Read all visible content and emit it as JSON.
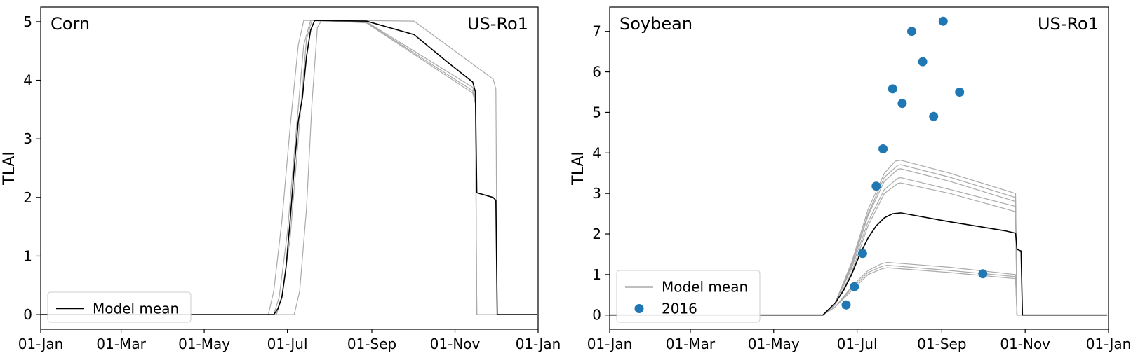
{
  "chart_data": [
    {
      "type": "line",
      "title": "Corn",
      "site": "US-Ro1",
      "ylabel": "TLAI",
      "xlabel": "",
      "xlim": [
        "01-Jan",
        "01-Jan"
      ],
      "ylim": [
        -0.25,
        5.25
      ],
      "xticks": [
        "01-Jan",
        "01-Mar",
        "01-May",
        "01-Jul",
        "01-Sep",
        "01-Nov",
        "01-Jan"
      ],
      "yticks": [
        "0",
        "1",
        "2",
        "3",
        "4",
        "5"
      ],
      "grid": false,
      "legend_position": "lower-left",
      "legend": [
        "Model mean"
      ],
      "mean_color": "#000000",
      "member_color": "#aaaaaa",
      "mean": [
        [
          1,
          0
        ],
        [
          172,
          0
        ],
        [
          175,
          0.1
        ],
        [
          178,
          0.3
        ],
        [
          181,
          0.8
        ],
        [
          184,
          1.6
        ],
        [
          187,
          2.5
        ],
        [
          190,
          3.3
        ],
        [
          193,
          3.7
        ],
        [
          196,
          4.4
        ],
        [
          199,
          4.85
        ],
        [
          202,
          5.02
        ],
        [
          240,
          5.01
        ],
        [
          275,
          4.78
        ],
        [
          300,
          4.3
        ],
        [
          318,
          3.97
        ],
        [
          320,
          3.8
        ],
        [
          321,
          2.08
        ],
        [
          333,
          2.0
        ],
        [
          335,
          1.95
        ],
        [
          336,
          0
        ],
        [
          365,
          0
        ]
      ],
      "members": [
        [
          [
            1,
            0
          ],
          [
            168,
            0
          ],
          [
            172,
            0.4
          ],
          [
            178,
            1.6
          ],
          [
            184,
            3.2
          ],
          [
            190,
            4.6
          ],
          [
            194,
            5.02
          ],
          [
            233,
            5.02
          ],
          [
            275,
            5.01
          ],
          [
            333,
            4.02
          ],
          [
            335,
            3.85
          ],
          [
            336,
            0
          ],
          [
            365,
            0
          ]
        ],
        [
          [
            1,
            0
          ],
          [
            172,
            0
          ],
          [
            176,
            0.3
          ],
          [
            182,
            1.4
          ],
          [
            188,
            3.0
          ],
          [
            194,
            4.6
          ],
          [
            199,
            5.02
          ],
          [
            240,
            5.0
          ],
          [
            318,
            3.88
          ],
          [
            320,
            3.7
          ],
          [
            321,
            0
          ],
          [
            365,
            0
          ]
        ],
        [
          [
            1,
            0
          ],
          [
            174,
            0
          ],
          [
            178,
            0.3
          ],
          [
            184,
            1.3
          ],
          [
            190,
            3.0
          ],
          [
            196,
            4.7
          ],
          [
            200,
            5.02
          ],
          [
            240,
            4.99
          ],
          [
            318,
            3.82
          ],
          [
            320,
            3.65
          ],
          [
            321,
            0
          ],
          [
            365,
            0
          ]
        ],
        [
          [
            1,
            0
          ],
          [
            187,
            0
          ],
          [
            191,
            0.4
          ],
          [
            196,
            1.8
          ],
          [
            200,
            3.6
          ],
          [
            204,
            4.9
          ],
          [
            207,
            5.02
          ],
          [
            240,
            4.98
          ],
          [
            318,
            3.78
          ],
          [
            320,
            3.6
          ],
          [
            321,
            0
          ],
          [
            365,
            0
          ]
        ]
      ]
    },
    {
      "type": "line",
      "title": "Soybean",
      "site": "US-Ro1",
      "ylabel": "TLAI",
      "xlabel": "",
      "xlim": [
        "01-Jan",
        "01-Jan"
      ],
      "ylim": [
        -0.35,
        7.6
      ],
      "xticks": [
        "01-Jan",
        "01-Mar",
        "01-May",
        "01-Jul",
        "01-Sep",
        "01-Nov",
        "01-Jan"
      ],
      "yticks": [
        "0",
        "1",
        "2",
        "3",
        "4",
        "5",
        "6",
        "7"
      ],
      "grid": false,
      "legend_position": "lower-left",
      "legend": [
        "Model mean",
        "2016"
      ],
      "mean_color": "#000000",
      "member_color": "#aaaaaa",
      "obs_color": "#1f77b4",
      "mean": [
        [
          1,
          0
        ],
        [
          157,
          0
        ],
        [
          160,
          0.1
        ],
        [
          166,
          0.3
        ],
        [
          172,
          0.6
        ],
        [
          178,
          1.0
        ],
        [
          184,
          1.5
        ],
        [
          190,
          1.9
        ],
        [
          196,
          2.2
        ],
        [
          202,
          2.4
        ],
        [
          208,
          2.5
        ],
        [
          214,
          2.52
        ],
        [
          250,
          2.3
        ],
        [
          290,
          2.08
        ],
        [
          298,
          2.02
        ],
        [
          299,
          1.62
        ],
        [
          302,
          1.58
        ],
        [
          303,
          0
        ],
        [
          365,
          0
        ]
      ],
      "members": [
        [
          [
            1,
            0
          ],
          [
            157,
            0
          ],
          [
            166,
            0.3
          ],
          [
            178,
            1.3
          ],
          [
            190,
            2.6
          ],
          [
            202,
            3.5
          ],
          [
            210,
            3.8
          ],
          [
            214,
            3.82
          ],
          [
            250,
            3.5
          ],
          [
            298,
            3.0
          ],
          [
            299,
            0
          ],
          [
            365,
            0
          ]
        ],
        [
          [
            1,
            0
          ],
          [
            157,
            0
          ],
          [
            166,
            0.3
          ],
          [
            178,
            1.25
          ],
          [
            190,
            2.5
          ],
          [
            202,
            3.4
          ],
          [
            212,
            3.7
          ],
          [
            214,
            3.71
          ],
          [
            250,
            3.4
          ],
          [
            298,
            2.9
          ],
          [
            299,
            0
          ],
          [
            365,
            0
          ]
        ],
        [
          [
            1,
            0
          ],
          [
            157,
            0
          ],
          [
            166,
            0.3
          ],
          [
            178,
            1.2
          ],
          [
            190,
            2.45
          ],
          [
            202,
            3.3
          ],
          [
            212,
            3.6
          ],
          [
            214,
            3.61
          ],
          [
            250,
            3.3
          ],
          [
            298,
            2.8
          ],
          [
            299,
            0
          ],
          [
            365,
            0
          ]
        ],
        [
          [
            1,
            0
          ],
          [
            157,
            0
          ],
          [
            166,
            0.3
          ],
          [
            178,
            1.15
          ],
          [
            190,
            2.3
          ],
          [
            202,
            3.1
          ],
          [
            212,
            3.38
          ],
          [
            214,
            3.39
          ],
          [
            250,
            3.1
          ],
          [
            298,
            2.68
          ],
          [
            299,
            0
          ],
          [
            365,
            0
          ]
        ],
        [
          [
            1,
            0
          ],
          [
            157,
            0
          ],
          [
            166,
            0.25
          ],
          [
            178,
            1.05
          ],
          [
            190,
            2.2
          ],
          [
            202,
            3.0
          ],
          [
            212,
            3.25
          ],
          [
            214,
            3.26
          ],
          [
            250,
            3.0
          ],
          [
            298,
            2.55
          ],
          [
            299,
            0
          ],
          [
            365,
            0
          ]
        ],
        [
          [
            1,
            0
          ],
          [
            157,
            0
          ],
          [
            166,
            0.2
          ],
          [
            178,
            0.7
          ],
          [
            190,
            1.1
          ],
          [
            200,
            1.27
          ],
          [
            204,
            1.3
          ],
          [
            250,
            1.18
          ],
          [
            298,
            1.0
          ],
          [
            299,
            0
          ],
          [
            365,
            0
          ]
        ],
        [
          [
            1,
            0
          ],
          [
            157,
            0
          ],
          [
            166,
            0.2
          ],
          [
            178,
            0.65
          ],
          [
            190,
            1.05
          ],
          [
            200,
            1.2
          ],
          [
            204,
            1.23
          ],
          [
            250,
            1.1
          ],
          [
            298,
            0.95
          ],
          [
            299,
            0
          ],
          [
            365,
            0
          ]
        ],
        [
          [
            1,
            0
          ],
          [
            157,
            0
          ],
          [
            166,
            0.2
          ],
          [
            178,
            0.6
          ],
          [
            190,
            1.0
          ],
          [
            200,
            1.14
          ],
          [
            204,
            1.17
          ],
          [
            250,
            1.05
          ],
          [
            298,
            0.9
          ],
          [
            299,
            0
          ],
          [
            365,
            0
          ]
        ]
      ],
      "observations": [
        [
          174,
          0.25
        ],
        [
          180,
          0.7
        ],
        [
          186,
          1.52
        ],
        [
          196,
          3.18
        ],
        [
          201,
          4.1
        ],
        [
          208,
          5.58
        ],
        [
          215,
          5.22
        ],
        [
          222,
          7.0
        ],
        [
          230,
          6.25
        ],
        [
          238,
          4.9
        ],
        [
          245,
          7.25
        ],
        [
          257,
          5.5
        ],
        [
          274,
          1.02
        ]
      ]
    }
  ]
}
